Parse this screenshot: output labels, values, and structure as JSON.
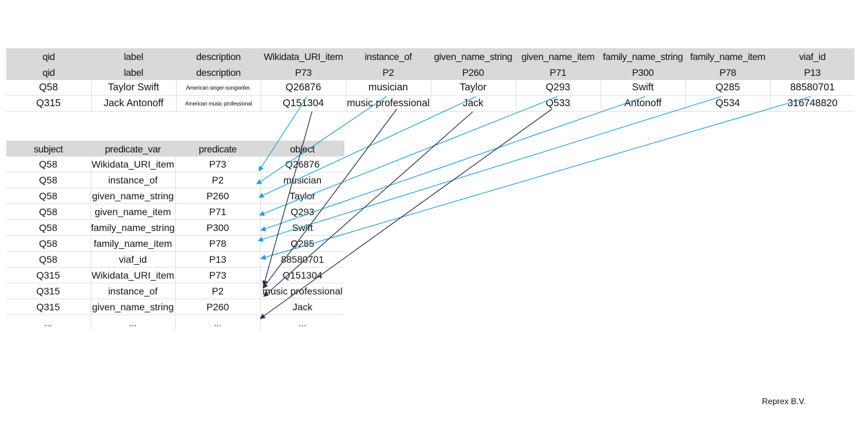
{
  "wide_table": {
    "header_row1": [
      "qid",
      "label",
      "description",
      "Wikidata_URI_item",
      "instance_of",
      "given_name_string",
      "given_name_item",
      "family_name_string",
      "family_name_item",
      "viaf_id"
    ],
    "header_row2": [
      "qid",
      "label",
      "description",
      "P73",
      "P2",
      "P260",
      "P71",
      "P300",
      "P78",
      "P13"
    ],
    "rows": [
      [
        "Q58",
        "Taylor Swift",
        "American singer-songwriter.",
        "Q26876",
        "musician",
        "Taylor",
        "Q293",
        "Swift",
        "Q285",
        "88580701"
      ],
      [
        "Q315",
        "Jack Antonoff",
        "American music professional",
        "Q151304",
        "music professional",
        "Jack",
        "Q533",
        "Antonoff",
        "Q534",
        "316748820"
      ]
    ]
  },
  "long_table": {
    "header": [
      "subject",
      "predicate_var",
      "predicate",
      "object"
    ],
    "rows": [
      [
        "Q58",
        "Wikidata_URI_item",
        "P73",
        "Q26876"
      ],
      [
        "Q58",
        "instance_of",
        "P2",
        "musician"
      ],
      [
        "Q58",
        "given_name_string",
        "P260",
        "Taylor"
      ],
      [
        "Q58",
        "given_name_item",
        "P71",
        "Q293"
      ],
      [
        "Q58",
        "family_name_string",
        "P300",
        "Swift"
      ],
      [
        "Q58",
        "family_name_item",
        "P78",
        "Q285"
      ],
      [
        "Q58",
        "viaf_id",
        "P13",
        "88580701"
      ],
      [
        "Q315",
        "Wikidata_URI_item",
        "P73",
        "Q151304"
      ],
      [
        "Q315",
        "instance_of",
        "P2",
        "music professional"
      ],
      [
        "Q315",
        "given_name_string",
        "P260",
        "Jack"
      ]
    ],
    "ellipsis_row": [
      "...",
      "...",
      "...",
      "..."
    ]
  },
  "arrow_colors": {
    "first_record": "#1e9fd8",
    "second_record": "#1f2a44"
  },
  "footer": "Reprex B.V."
}
